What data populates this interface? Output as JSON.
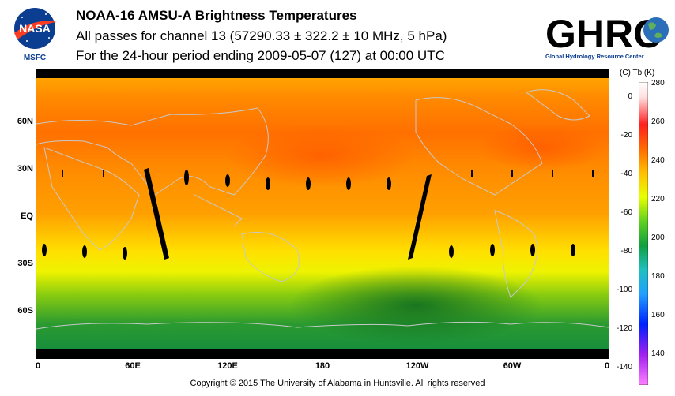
{
  "header": {
    "title": "NOAA-16 AMSU-A Brightness Temperatures",
    "line2": "All passes for channel 13 (57290.33 ± 322.2 ± 10 MHz, 5 hPa)",
    "line3": "For the 24-hour period ending 2009-05-07 (127) at 00:00 UTC"
  },
  "logos": {
    "left_text": "NASA",
    "left_sub": "MSFC",
    "right_text": "GHRC",
    "right_sub": "Global Hydrology Resource Center"
  },
  "map": {
    "lat_labels": [
      "60N",
      "30N",
      "EQ",
      "30S",
      "60S"
    ],
    "lon_labels": [
      "0",
      "60E",
      "120E",
      "180",
      "120W",
      "60W",
      "0"
    ]
  },
  "colorbar": {
    "unit_label": "(C)  Tb  (K)",
    "celsius_ticks": [
      "0",
      "-20",
      "-40",
      "-60",
      "-80",
      "-100",
      "-120",
      "-140"
    ],
    "kelvin_ticks": [
      "280",
      "260",
      "240",
      "220",
      "200",
      "180",
      "160",
      "140"
    ]
  },
  "footer": {
    "copyright": "Copyright © 2015 The University of Alabama in Huntsville.  All rights reserved"
  },
  "colors": {
    "warm": "#ff7a00",
    "mid": "#f7f300",
    "cool": "#1a8a3a"
  }
}
